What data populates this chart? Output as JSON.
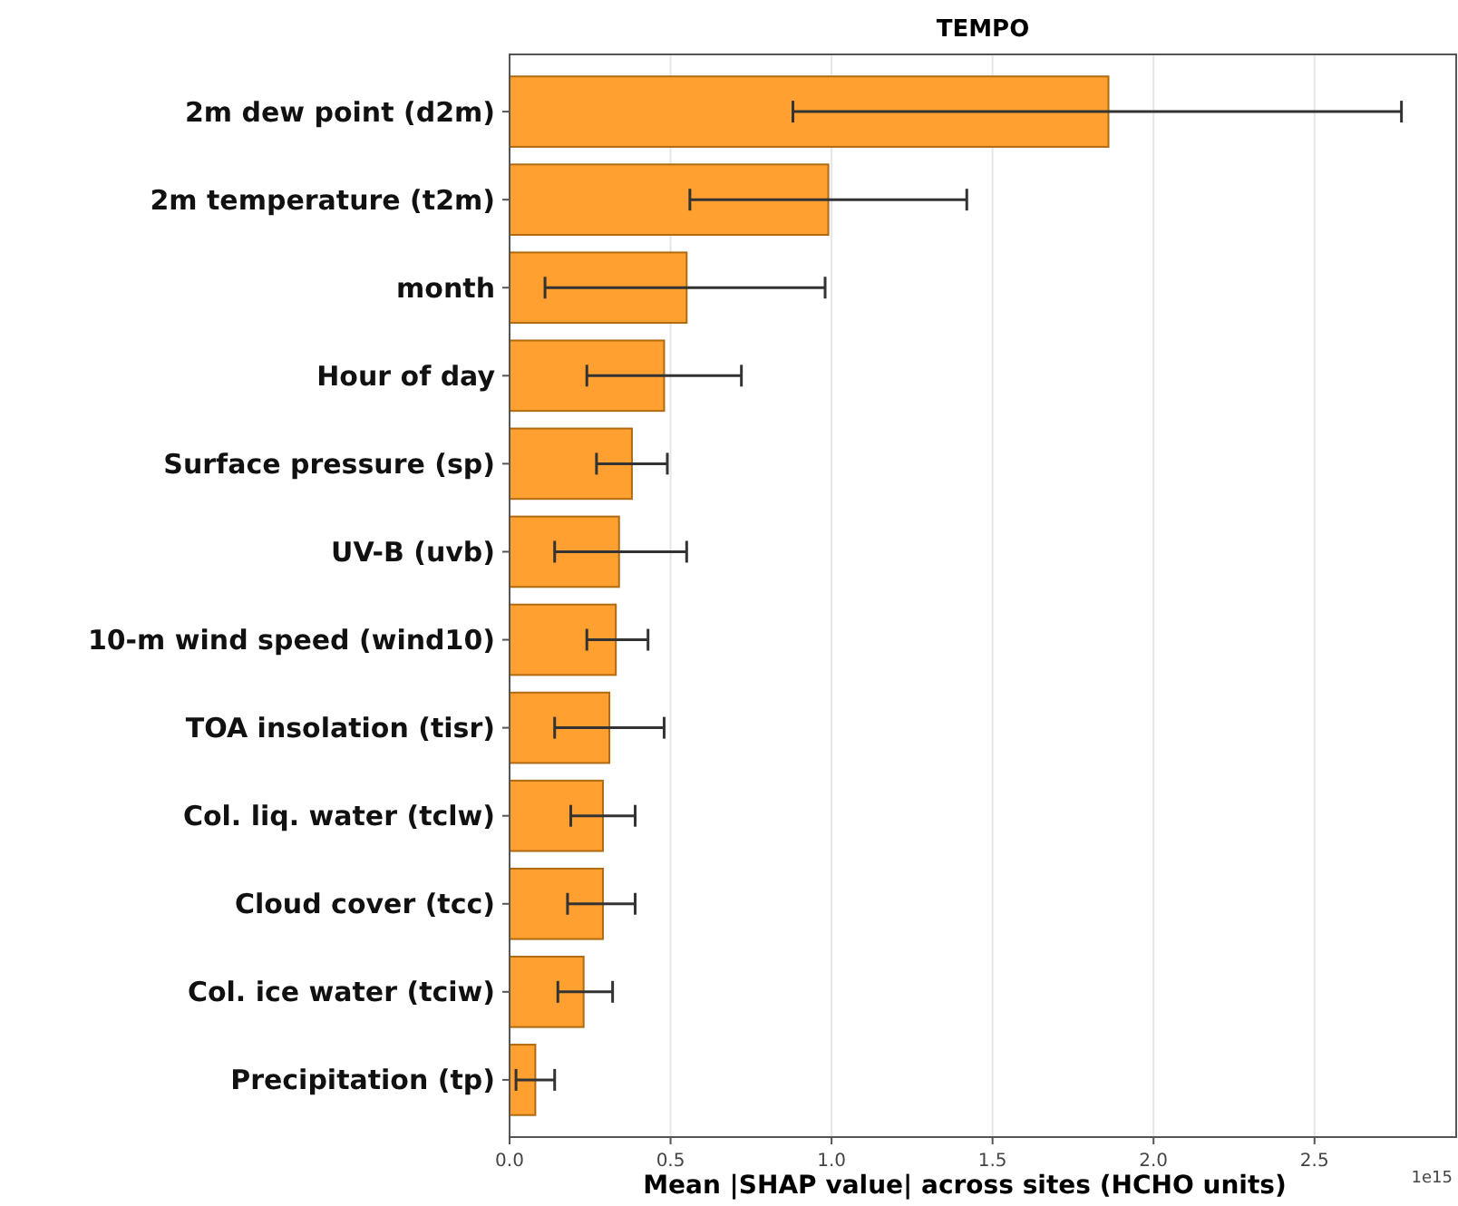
{
  "chart_data": {
    "type": "bar",
    "orientation": "horizontal",
    "title": "TEMPO",
    "xlabel": "Mean |SHAP value| across sites (HCHO units)",
    "categories": [
      "2m dew point (d2m)",
      "2m temperature (t2m)",
      "month",
      "Hour of day",
      "Surface pressure (sp)",
      "UV-B (uvb)",
      "10-m wind speed (wind10)",
      "TOA insolation (tisr)",
      "Col. liq. water (tclw)",
      "Cloud cover (tcc)",
      "Col. ice water (tciw)",
      "Precipitation (tp)"
    ],
    "values": [
      1.86,
      0.99,
      0.55,
      0.48,
      0.38,
      0.34,
      0.33,
      0.31,
      0.29,
      0.29,
      0.23,
      0.08
    ],
    "errors": [
      [
        0.88,
        2.77
      ],
      [
        0.56,
        1.42
      ],
      [
        0.11,
        0.98
      ],
      [
        0.24,
        0.72
      ],
      [
        0.27,
        0.49
      ],
      [
        0.14,
        0.55
      ],
      [
        0.24,
        0.43
      ],
      [
        0.14,
        0.48
      ],
      [
        0.19,
        0.39
      ],
      [
        0.18,
        0.39
      ],
      [
        0.15,
        0.32
      ],
      [
        0.02,
        0.14
      ]
    ],
    "color": "#ffa030",
    "xlim": [
      0,
      2.94
    ],
    "xticks": [
      {
        "value": 0,
        "label": "0.0"
      },
      0.5,
      {
        "value": 1,
        "label": "1.0"
      },
      1.5,
      {
        "value": 2,
        "label": "2.0"
      },
      2.5
    ],
    "grid": "x",
    "annotations": [
      "1e15"
    ]
  }
}
